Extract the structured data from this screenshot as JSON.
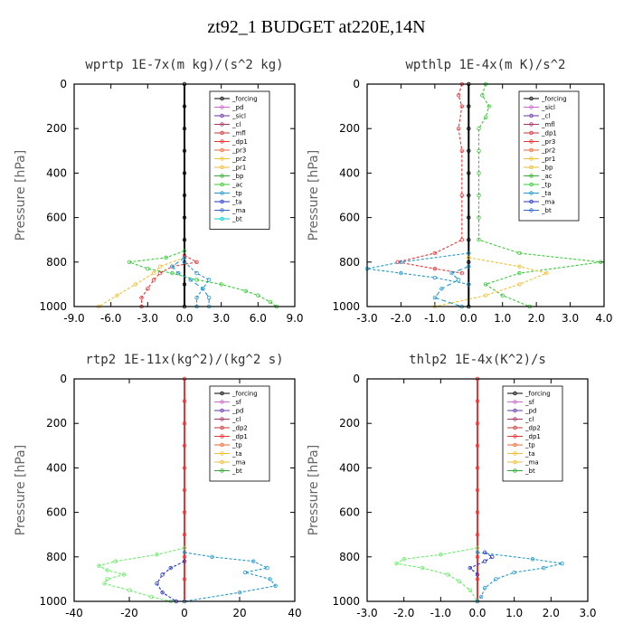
{
  "figure": {
    "title": "zt92_1  BUDGET at220E,14N"
  },
  "chart_data": [
    {
      "type": "line",
      "title": "wprtp   1E-7x(m kg)/(s^2 kg)",
      "ylabel": "Pressure [hPa]",
      "xlim": [
        -9,
        9
      ],
      "xticks": [
        "-9.0",
        "-6.0",
        "-3.0",
        "0.0",
        "3.0",
        "6.0",
        "9.0"
      ],
      "xtick_values": [
        -9,
        -6,
        -3,
        0,
        3,
        6,
        9
      ],
      "ylim": [
        1000,
        0
      ],
      "yticks": [
        "0",
        "200",
        "400",
        "600",
        "800",
        "1000"
      ],
      "ytick_values": [
        0,
        200,
        400,
        600,
        800,
        1000
      ],
      "legend": {
        "position": "top-right",
        "entries": [
          "_forcing",
          "_pd",
          "_sicl",
          "_cl",
          "_mfl",
          "_dp1",
          "_pr3",
          "_pr2",
          "_pr1",
          "_bp",
          "_ac",
          "_tp",
          "_ta",
          "_ma",
          "_bt"
        ]
      },
      "series": [
        {
          "name": "_forcing",
          "color": "#000000",
          "p": [
            0,
            100,
            200,
            300,
            400,
            500,
            600,
            700,
            800,
            900,
            1000
          ],
          "x": [
            0,
            0,
            0,
            0,
            0,
            0,
            0,
            0,
            0,
            0,
            0
          ]
        },
        {
          "name": "_ac",
          "color": "#33cc33",
          "p": [
            750,
            780,
            800,
            830,
            850,
            880,
            900,
            930,
            950,
            980,
            1000
          ],
          "x": [
            0,
            -1.5,
            -4.5,
            -3,
            -1,
            1,
            3,
            5,
            6,
            7,
            7.5
          ]
        },
        {
          "name": "_pr2",
          "color": "#f0c030",
          "p": [
            780,
            820,
            850,
            900,
            950,
            1000
          ],
          "x": [
            0,
            -2,
            -2.5,
            -4,
            -5.5,
            -7
          ]
        },
        {
          "name": "_dp1",
          "color": "#ee3333",
          "p": [
            770,
            800,
            820,
            850,
            880,
            920,
            960,
            1000
          ],
          "x": [
            0,
            1,
            -1,
            -2,
            -2.5,
            -3,
            -3.5,
            -3.5
          ]
        },
        {
          "name": "_tp",
          "color": "#2299cc",
          "p": [
            800,
            850,
            880,
            920,
            960,
            1000
          ],
          "x": [
            0,
            1,
            2,
            1.5,
            1,
            1
          ]
        },
        {
          "name": "_ma",
          "color": "#2299cc",
          "p": [
            780,
            820,
            850,
            880,
            920,
            960,
            1000
          ],
          "x": [
            0,
            -1,
            -0.5,
            0.5,
            1.5,
            2,
            2
          ]
        }
      ]
    },
    {
      "type": "line",
      "title": "wpthlp   1E-4x(m K)/s^2",
      "ylabel": "Pressure [hPa]",
      "xlim": [
        -3,
        4
      ],
      "xticks": [
        "-3.0",
        "-2.0",
        "-1.0",
        "0.0",
        "1.0",
        "2.0",
        "3.0",
        "4.0"
      ],
      "xtick_values": [
        -3,
        -2,
        -1,
        0,
        1,
        2,
        3,
        4
      ],
      "ylim": [
        1000,
        0
      ],
      "yticks": [
        "0",
        "200",
        "400",
        "600",
        "800",
        "1000"
      ],
      "ytick_values": [
        0,
        200,
        400,
        600,
        800,
        1000
      ],
      "legend": {
        "position": "top-right",
        "entries": [
          "_forcing",
          "_sicl",
          "_cl",
          "_mfl",
          "_dp1",
          "_pr3",
          "_pr2",
          "_pr1",
          "_bp",
          "_ac",
          "_tp",
          "_ta",
          "_ma",
          "_bt"
        ]
      },
      "series": [
        {
          "name": "_forcing",
          "color": "#000000",
          "p": [
            0,
            100,
            200,
            300,
            400,
            500,
            600,
            700,
            800,
            900,
            1000
          ],
          "x": [
            0,
            0,
            0,
            0,
            0,
            0,
            0,
            0,
            0,
            0,
            0
          ]
        },
        {
          "name": "_ac",
          "color": "#33cc33",
          "p": [
            0,
            50,
            100,
            150,
            200,
            300,
            400,
            500,
            600,
            700,
            760,
            800,
            850,
            900,
            950,
            1000
          ],
          "x": [
            0.5,
            0.4,
            0.6,
            0.5,
            0.3,
            0.3,
            0.3,
            0.3,
            0.3,
            0.3,
            1.5,
            3.9,
            1.5,
            0.5,
            1,
            1.8
          ]
        },
        {
          "name": "_dp1",
          "color": "#ee3333",
          "p": [
            0,
            50,
            100,
            200,
            300,
            500,
            700,
            760,
            800,
            830,
            850
          ],
          "x": [
            -0.2,
            -0.3,
            -0.2,
            -0.3,
            -0.2,
            -0.2,
            -0.2,
            -1,
            -2.1,
            -1,
            -0.2
          ]
        },
        {
          "name": "_pr2",
          "color": "#f0c030",
          "p": [
            780,
            820,
            850,
            900,
            950,
            1000
          ],
          "x": [
            0,
            1.5,
            2.3,
            1.5,
            0.5,
            -1
          ]
        },
        {
          "name": "_tp",
          "color": "#2299cc",
          "p": [
            760,
            800,
            830,
            850,
            870,
            900
          ],
          "x": [
            0,
            -2,
            -3,
            -2,
            -1,
            0
          ]
        },
        {
          "name": "_ma",
          "color": "#2299cc",
          "p": [
            820,
            850,
            880,
            920,
            960,
            1000
          ],
          "x": [
            0,
            -0.5,
            -0.3,
            -0.8,
            -1,
            -0.2
          ]
        }
      ]
    },
    {
      "type": "line",
      "title": "rtp2   1E-11x(kg^2)/(kg^2 s)",
      "ylabel": "Pressure [hPa]",
      "xlim": [
        -40,
        40
      ],
      "xticks": [
        "-40",
        "-20",
        "0",
        "20",
        "40"
      ],
      "xtick_values": [
        -40,
        -20,
        0,
        20,
        40
      ],
      "ylim": [
        1000,
        0
      ],
      "yticks": [
        "0",
        "200",
        "400",
        "600",
        "800",
        "1000"
      ],
      "ytick_values": [
        0,
        200,
        400,
        600,
        800,
        1000
      ],
      "legend": {
        "position": "top-right",
        "entries": [
          "_forcing",
          "_sf",
          "_pd",
          "_cl",
          "_dp2",
          "_dp1",
          "_tp",
          "_ta",
          "_ma",
          "_bt"
        ]
      },
      "series": [
        {
          "name": "_forcing",
          "color": "#ee3333",
          "p": [
            0,
            100,
            200,
            300,
            400,
            500,
            600,
            700,
            800,
            900,
            1000
          ],
          "x": [
            0,
            0,
            0,
            0,
            0,
            0,
            0,
            0,
            0,
            0,
            0
          ]
        },
        {
          "name": "_dp1",
          "color": "#66ee66",
          "p": [
            760,
            790,
            820,
            840,
            860,
            880,
            900,
            920,
            950,
            980,
            1000
          ],
          "x": [
            0,
            -10,
            -25,
            -31,
            -28,
            -22,
            -28,
            -29,
            -20,
            -12,
            -5
          ]
        },
        {
          "name": "_tp",
          "color": "#2299cc",
          "p": [
            780,
            800,
            820,
            850,
            870,
            900,
            930,
            960,
            1000
          ],
          "x": [
            0,
            10,
            25,
            30,
            22,
            31,
            33,
            20,
            0
          ]
        },
        {
          "name": "_ta",
          "color": "#2233cc",
          "p": [
            820,
            850,
            880,
            920,
            960,
            1000
          ],
          "x": [
            0,
            -5,
            -8,
            -10,
            -8,
            -3
          ]
        }
      ]
    },
    {
      "type": "line",
      "title": "thlp2   1E-4x(K^2)/s",
      "ylabel": "Pressure [hPa]",
      "xlim": [
        -3,
        3
      ],
      "xticks": [
        "-3.0",
        "-2.0",
        "-1.0",
        "0.0",
        "1.0",
        "2.0",
        "3.0"
      ],
      "xtick_values": [
        -3,
        -2,
        -1,
        0,
        1,
        2,
        3
      ],
      "ylim": [
        1000,
        0
      ],
      "yticks": [
        "0",
        "200",
        "400",
        "600",
        "800",
        "1000"
      ],
      "ytick_values": [
        0,
        200,
        400,
        600,
        800,
        1000
      ],
      "legend": {
        "position": "top-right",
        "entries": [
          "_forcing",
          "_sf",
          "_pd",
          "_cl",
          "_dp2",
          "_dp1",
          "_tp",
          "_ta",
          "_ma",
          "_bt"
        ]
      },
      "series": [
        {
          "name": "_forcing",
          "color": "#ee3333",
          "p": [
            0,
            100,
            200,
            300,
            400,
            500,
            600,
            700,
            800,
            900,
            1000
          ],
          "x": [
            0,
            0,
            0,
            0,
            0,
            0,
            0,
            0,
            0,
            0,
            0
          ]
        },
        {
          "name": "_dp1",
          "color": "#66ee66",
          "p": [
            760,
            790,
            810,
            830,
            850,
            880,
            910,
            950,
            1000
          ],
          "x": [
            0,
            -1,
            -2,
            -2.2,
            -1.5,
            -0.8,
            -0.5,
            -0.2,
            0
          ]
        },
        {
          "name": "_tp",
          "color": "#2299cc",
          "p": [
            780,
            810,
            830,
            850,
            870,
            900,
            940,
            980,
            1000
          ],
          "x": [
            0,
            1.5,
            2.3,
            1.8,
            1,
            0.5,
            0.2,
            0.1,
            0
          ]
        },
        {
          "name": "_ta",
          "color": "#2233cc",
          "p": [
            780,
            800,
            820,
            850,
            880
          ],
          "x": [
            0.2,
            0.4,
            0.2,
            -0.2,
            0
          ]
        }
      ]
    }
  ]
}
